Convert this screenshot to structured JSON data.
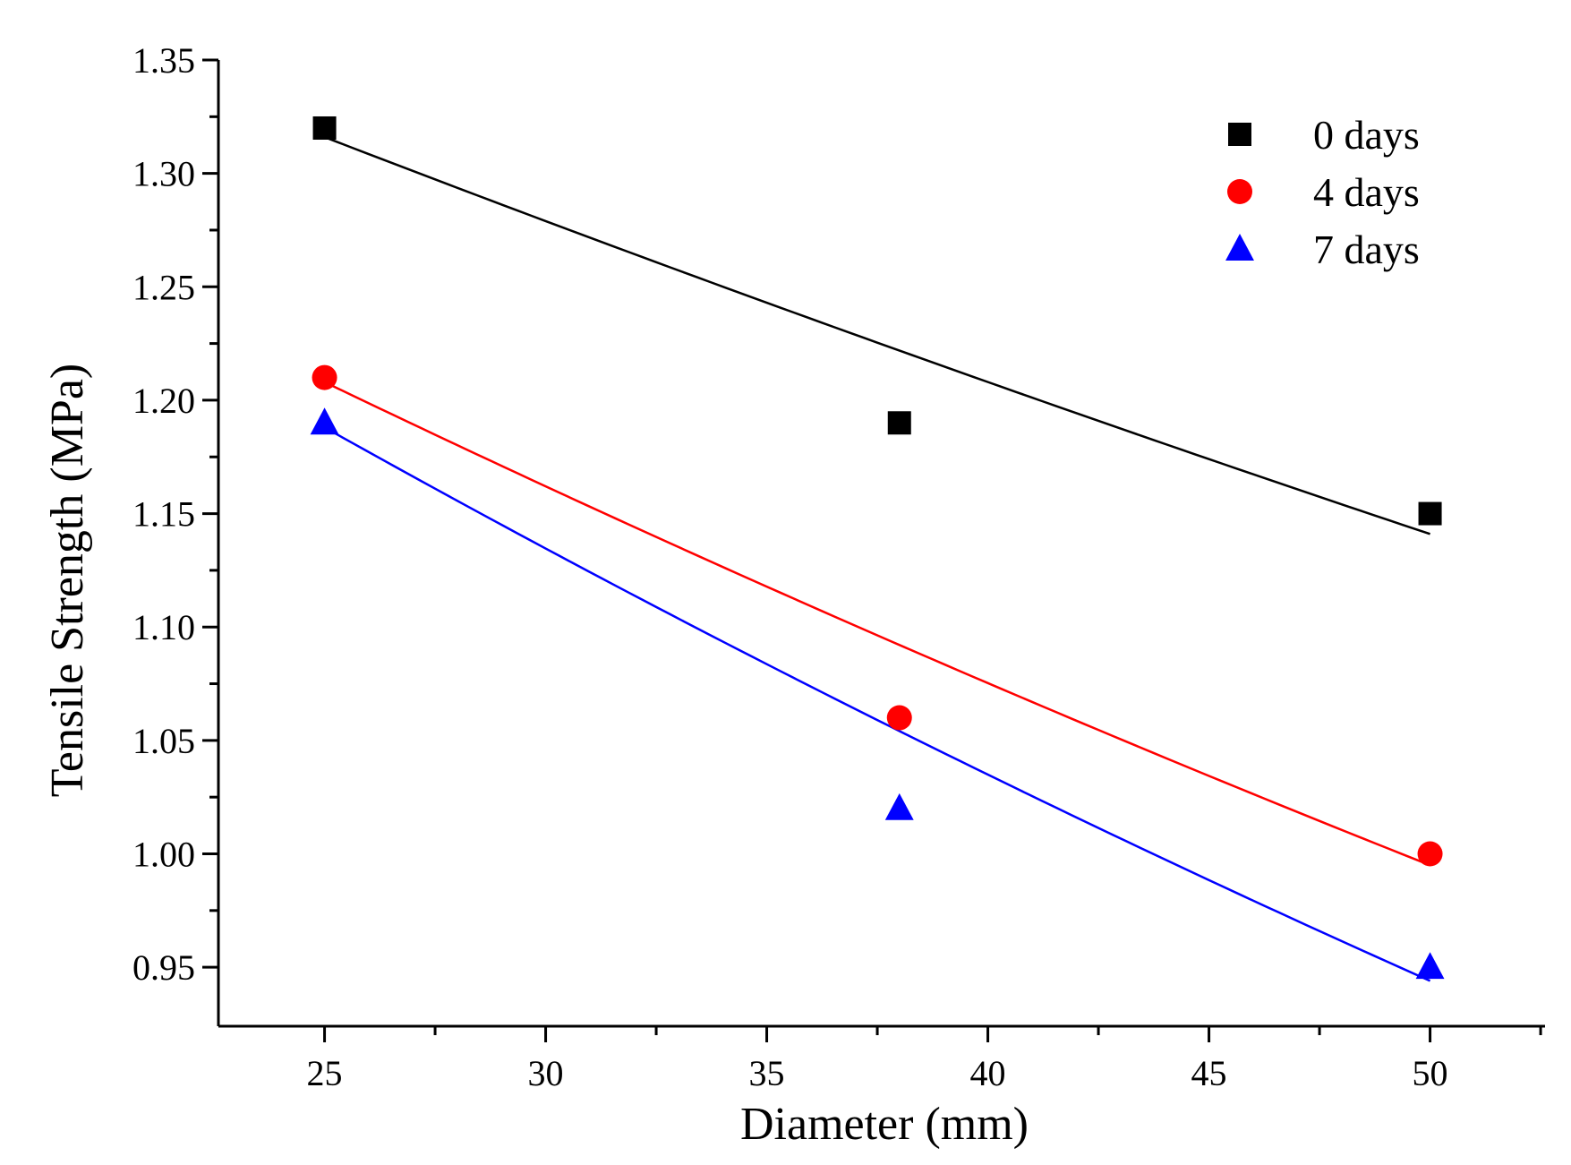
{
  "chart_data": {
    "type": "scatter",
    "title": "",
    "xlabel": "Diameter (mm)",
    "ylabel": "Tensile Strength (MPa)",
    "xlim": [
      22.6,
      52.6
    ],
    "ylim": [
      0.924,
      1.35
    ],
    "xticks": [
      25,
      30,
      35,
      40,
      45,
      50
    ],
    "xtick_labels": [
      "25",
      "30",
      "35",
      "40",
      "45",
      "50"
    ],
    "yticks": [
      0.95,
      1.0,
      1.05,
      1.1,
      1.15,
      1.2,
      1.25,
      1.3,
      1.35
    ],
    "ytick_labels": [
      "0.95",
      "1.00",
      "1.05",
      "1.10",
      "1.15",
      "1.20",
      "1.25",
      "1.30",
      "1.35"
    ],
    "grid": false,
    "legend_position": "top-right",
    "series": [
      {
        "name": "0 days",
        "marker": "square",
        "color": "#000000",
        "x": [
          25,
          38,
          50
        ],
        "y": [
          1.32,
          1.19,
          1.15
        ],
        "fit_curve": {
          "x": [
            25,
            50
          ],
          "y": [
            1.316,
            1.141
          ]
        }
      },
      {
        "name": "4 days",
        "marker": "circle",
        "color": "#ff0000",
        "x": [
          25,
          38,
          50
        ],
        "y": [
          1.21,
          1.06,
          1.0
        ],
        "fit_curve": {
          "x": [
            25,
            50
          ],
          "y": [
            1.208,
            0.995
          ]
        }
      },
      {
        "name": "7 days",
        "marker": "triangle",
        "color": "#0000ff",
        "x": [
          25,
          38,
          50
        ],
        "y": [
          1.19,
          1.02,
          0.95
        ],
        "fit_curve": {
          "x": [
            25,
            50
          ],
          "y": [
            1.188,
            0.944
          ]
        }
      }
    ]
  }
}
